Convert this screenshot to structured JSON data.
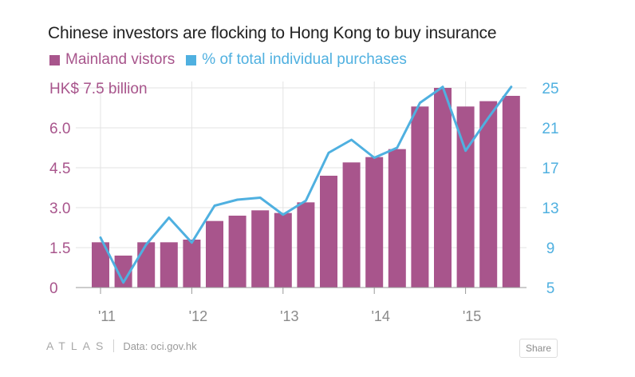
{
  "title": "Chinese investors are flocking to Hong Kong to buy insurance",
  "legend": [
    {
      "label": "Mainland vistors",
      "color": "#a8558c",
      "text_color": "#a8558c"
    },
    {
      "label": "% of total individual purchases",
      "color": "#4fb0e0",
      "text_color": "#4fb0e0"
    }
  ],
  "footer": {
    "logo": "ATLAS",
    "source": "Data: oci.gov.hk",
    "share_label": "Share"
  },
  "chart_data": {
    "type": "bar",
    "x_ticks": [
      "'11",
      "'12",
      "'13",
      "'14",
      "'15"
    ],
    "left_axis": {
      "ticks": [
        "0",
        "1.5",
        "3.0",
        "4.5",
        "6.0",
        "HK$ 7.5 billion"
      ],
      "tick_values": [
        0,
        1.5,
        3.0,
        4.5,
        6.0,
        7.5
      ],
      "ylim": [
        0,
        7.5
      ],
      "color": "#a8558c"
    },
    "right_axis": {
      "ticks": [
        "5",
        "9",
        "13",
        "17",
        "21",
        "25"
      ],
      "tick_values": [
        5,
        9,
        13,
        17,
        21,
        25
      ],
      "ylim": [
        5,
        25
      ],
      "color": "#4fb0e0"
    },
    "grid": true,
    "series": [
      {
        "name": "Mainland vistors",
        "type": "bar",
        "axis": "left",
        "color": "#a8558c",
        "x": [
          "2011Q1",
          "2011Q2",
          "2011Q3",
          "2011Q4",
          "2012Q1",
          "2012Q2",
          "2012Q3",
          "2012Q4",
          "2013Q1",
          "2013Q2",
          "2013Q3",
          "2013Q4",
          "2014Q1",
          "2014Q2",
          "2014Q3",
          "2014Q4",
          "2015Q1",
          "2015Q2",
          "2015Q3"
        ],
        "values": [
          1.7,
          1.2,
          1.7,
          1.7,
          1.8,
          2.5,
          2.7,
          2.9,
          2.8,
          3.2,
          4.2,
          4.7,
          4.9,
          5.2,
          6.8,
          7.5,
          6.8,
          7.0,
          7.2
        ]
      },
      {
        "name": "% of total individual purchases",
        "type": "line",
        "axis": "right",
        "color": "#4fb0e0",
        "x": [
          "2011Q1",
          "2011Q2",
          "2011Q3",
          "2011Q4",
          "2012Q1",
          "2012Q2",
          "2012Q3",
          "2012Q4",
          "2013Q1",
          "2013Q2",
          "2013Q3",
          "2013Q4",
          "2014Q1",
          "2014Q2",
          "2014Q3",
          "2014Q4",
          "2015Q1",
          "2015Q2",
          "2015Q3"
        ],
        "values": [
          10.0,
          5.5,
          9.3,
          12.0,
          9.5,
          13.2,
          13.8,
          14.0,
          12.3,
          13.7,
          18.5,
          19.8,
          18.0,
          19.0,
          23.5,
          25.1,
          18.7,
          22.0,
          25.1
        ]
      }
    ]
  }
}
